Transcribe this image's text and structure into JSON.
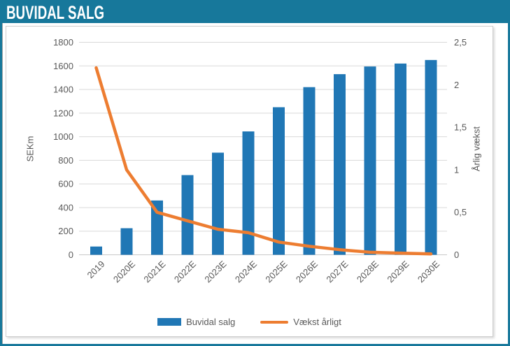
{
  "header": {
    "title": "BUVIDAL SALG"
  },
  "colors": {
    "accent_teal": "#17789B",
    "bar_blue": "#2077B5",
    "line_orange": "#ED7D31",
    "text_gray": "#595959",
    "gridline": "#D9D9D9",
    "axis_line": "#C9C9C9"
  },
  "chart_data": {
    "type": "bar",
    "title": "BUVIDAL SALG",
    "categories": [
      "2019",
      "2020E",
      "2021E",
      "2022E",
      "2023E",
      "2024E",
      "2025E",
      "2026E",
      "2027E",
      "2028E",
      "2029E",
      "2030E"
    ],
    "series": [
      {
        "name": "Buvidal salg",
        "type": "bar",
        "axis": "left",
        "values": [
          70,
          225,
          460,
          675,
          865,
          1045,
          1250,
          1420,
          1530,
          1595,
          1620,
          1650
        ]
      },
      {
        "name": "Vækst årligt",
        "type": "line",
        "axis": "right",
        "values": [
          2.2,
          1.0,
          0.5,
          0.4,
          0.3,
          0.26,
          0.15,
          0.1,
          0.06,
          0.03,
          0.02,
          0.01
        ]
      }
    ],
    "xlabel": "",
    "ylabel_left": "SEKm",
    "ylabel_right": "Årlig vækst",
    "ylim_left": [
      0,
      1800
    ],
    "ylim_right": [
      0,
      2.5
    ],
    "yticks_left_labels": [
      "0",
      "200",
      "400",
      "600",
      "800",
      "1000",
      "1200",
      "1400",
      "1600",
      "1800"
    ],
    "yticks_right_labels": [
      "0",
      "0,5",
      "1",
      "1,5",
      "2",
      "2,5"
    ],
    "grid": true,
    "legend_position": "bottom",
    "x_tick_rotation": 45
  }
}
